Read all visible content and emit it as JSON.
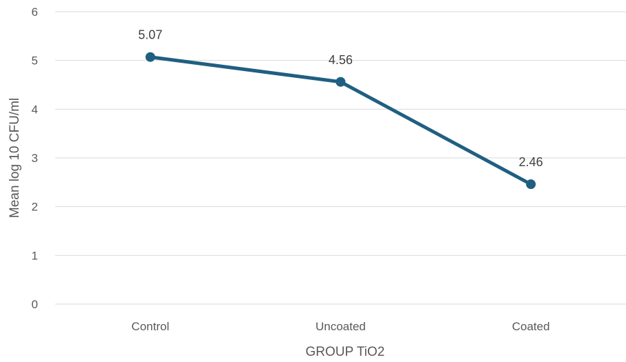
{
  "chart_data": {
    "type": "line",
    "categories": [
      "Control",
      "Uncoated",
      "Coated"
    ],
    "series": [
      {
        "values": [
          5.07,
          4.56,
          2.46
        ]
      }
    ],
    "data_labels": [
      "5.07",
      "4.56",
      "2.46"
    ],
    "title": "",
    "xlabel": "GROUP TiO2",
    "ylabel": "Mean log 10 CFU/ml",
    "ylim": [
      0,
      6
    ],
    "yticks": [
      "0",
      "1",
      "2",
      "3",
      "4",
      "5",
      "6"
    ],
    "grid": "horizontal",
    "legend": "none",
    "line_color": "#1f5f82"
  }
}
